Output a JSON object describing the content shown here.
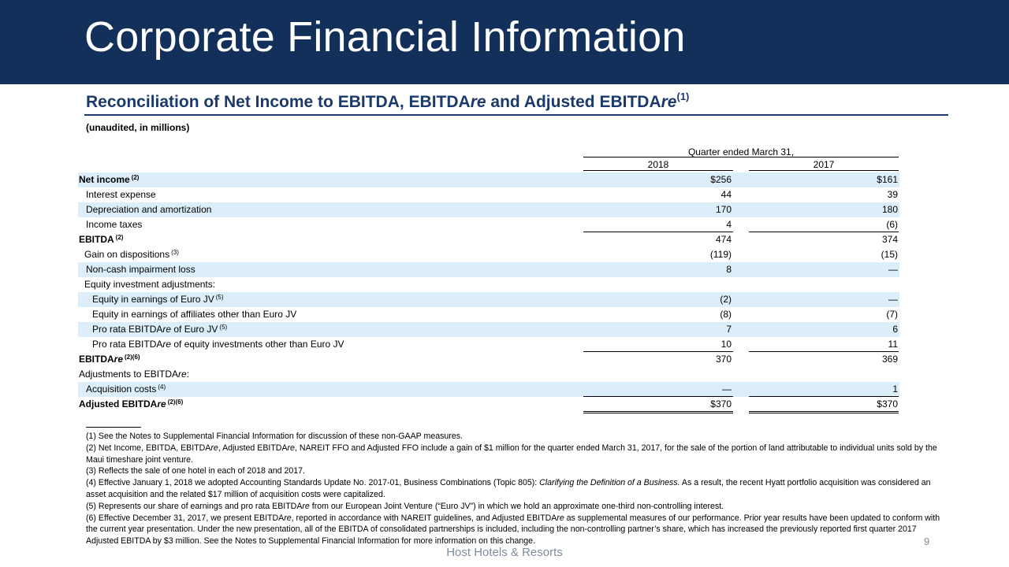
{
  "header": {
    "title": "Corporate Financial Information"
  },
  "section": {
    "subtitle_part1": "Reconciliation of Net Income to EBITDA, EBITDA",
    "subtitle_part2": "re",
    "subtitle_part3": " and Adjusted EBITDA",
    "subtitle_part4": "re",
    "subtitle_sup": "(1)",
    "unaudited": "(unaudited, in millions)"
  },
  "table": {
    "period_header": "Quarter ended March 31,",
    "years": [
      "2018",
      "2017"
    ],
    "rows": [
      {
        "label": "Net income",
        "italic": "",
        "sup": "(2)",
        "v2018": "$256",
        "v2017": "$161"
      },
      {
        "label": "Interest expense",
        "italic": "",
        "sup": "",
        "v2018": "44",
        "v2017": "39"
      },
      {
        "label": "Depreciation and amortization",
        "italic": "",
        "sup": "",
        "v2018": "170",
        "v2017": "180"
      },
      {
        "label": "Income taxes",
        "italic": "",
        "sup": "",
        "v2018": "4",
        "v2017": "(6)"
      },
      {
        "label": "EBITDA",
        "italic": "",
        "sup": "(2)",
        "v2018": "474",
        "v2017": "374"
      },
      {
        "label": "Gain on dispositions",
        "italic": "",
        "sup": "(3)",
        "v2018": "(119)",
        "v2017": "(15)"
      },
      {
        "label": "Non-cash impairment loss",
        "italic": "",
        "sup": "",
        "v2018": "8",
        "v2017": "—"
      },
      {
        "label": "Equity investment adjustments:",
        "italic": "",
        "sup": "",
        "v2018": "",
        "v2017": ""
      },
      {
        "label": "Equity in earnings of Euro JV",
        "italic": "",
        "sup": "(5)",
        "v2018": "(2)",
        "v2017": "—"
      },
      {
        "label": "Equity in earnings of affiliates other than Euro JV",
        "italic": "",
        "sup": "",
        "v2018": "(8)",
        "v2017": "(7)"
      },
      {
        "label": "Pro rata EBITDA",
        "italic": "re",
        "label_after": " of Euro JV",
        "sup": "(5)",
        "v2018": "7",
        "v2017": "6"
      },
      {
        "label": "Pro rata EBITDA",
        "italic": "re",
        "label_after": " of equity investments other than Euro JV",
        "sup": "",
        "v2018": "10",
        "v2017": "11"
      },
      {
        "label": "EBITDA",
        "italic": "re",
        "sup": "(2)(6)",
        "v2018": "370",
        "v2017": "369"
      },
      {
        "label": "Adjustments to EBITDA",
        "italic": "re",
        "label_after": ":",
        "sup": "",
        "v2018": "",
        "v2017": ""
      },
      {
        "label": "Acquisition costs",
        "italic": "",
        "sup": "(4)",
        "v2018": "—",
        "v2017": "1"
      },
      {
        "label": "Adjusted EBITDA",
        "italic": "re",
        "sup": "(2)(6)",
        "v2018": "$370",
        "v2017": "$370"
      }
    ]
  },
  "footnotes": {
    "fn1": "(1) See the Notes to Supplemental Financial Information for discussion of these non-GAAP measures.",
    "fn2a": "(2) Net Income, EBITDA, EBITDA",
    "fn2b": "re",
    "fn2c": ", Adjusted EBITDA",
    "fn2d": "re",
    "fn2e": ", NAREIT FFO and Adjusted FFO include a gain of $1 million for the quarter ended March 31, 2017, for the sale of the portion of land attributable to individual units sold by the Maui timeshare joint venture.",
    "fn3": "(3) Reflects the sale of one hotel in each of 2018 and 2017.",
    "fn4a": "(4) Effective January 1, 2018 we adopted Accounting Standards Update No. 2017-01, Business Combinations (Topic 805): ",
    "fn4b": "Clarifying the Definition of a Business.",
    "fn4c": " As a result, the recent Hyatt portfolio acquisition was considered an asset acquisition and the related $17 million of acquisition costs were capitalized.",
    "fn5a": "(5) Represents our share of earnings and pro rata EBITDA",
    "fn5b": "re",
    "fn5c": " from our European Joint Venture (“Euro JV”) in which we hold an approximate one-third non-controlling interest.",
    "fn6a": "(6) Effective December 31, 2017, we present EBITDA",
    "fn6b": "re",
    "fn6c": ", reported in accordance with NAREIT guidelines, and Adjusted EBITDA",
    "fn6d": "re",
    "fn6e": " as supplemental measures of our performance. Prior year results have been updated to conform with the current year presentation. Under the new presentation, all of the EBITDA of consolidated partnerships is included, including the non-controlling partner’s share, which has increased the previously reported first quarter 2017 Adjusted EBITDA by $3 million. See the Notes to Supplemental Financial Information for more information on this change."
  },
  "page_number": "9",
  "footer": "Host Hotels & Resorts",
  "colors": {
    "header_bg": "#12305a",
    "subtitle": "#1b3a6b",
    "row_shade": "#dbeefa",
    "footer_text": "#7f8c9c"
  }
}
